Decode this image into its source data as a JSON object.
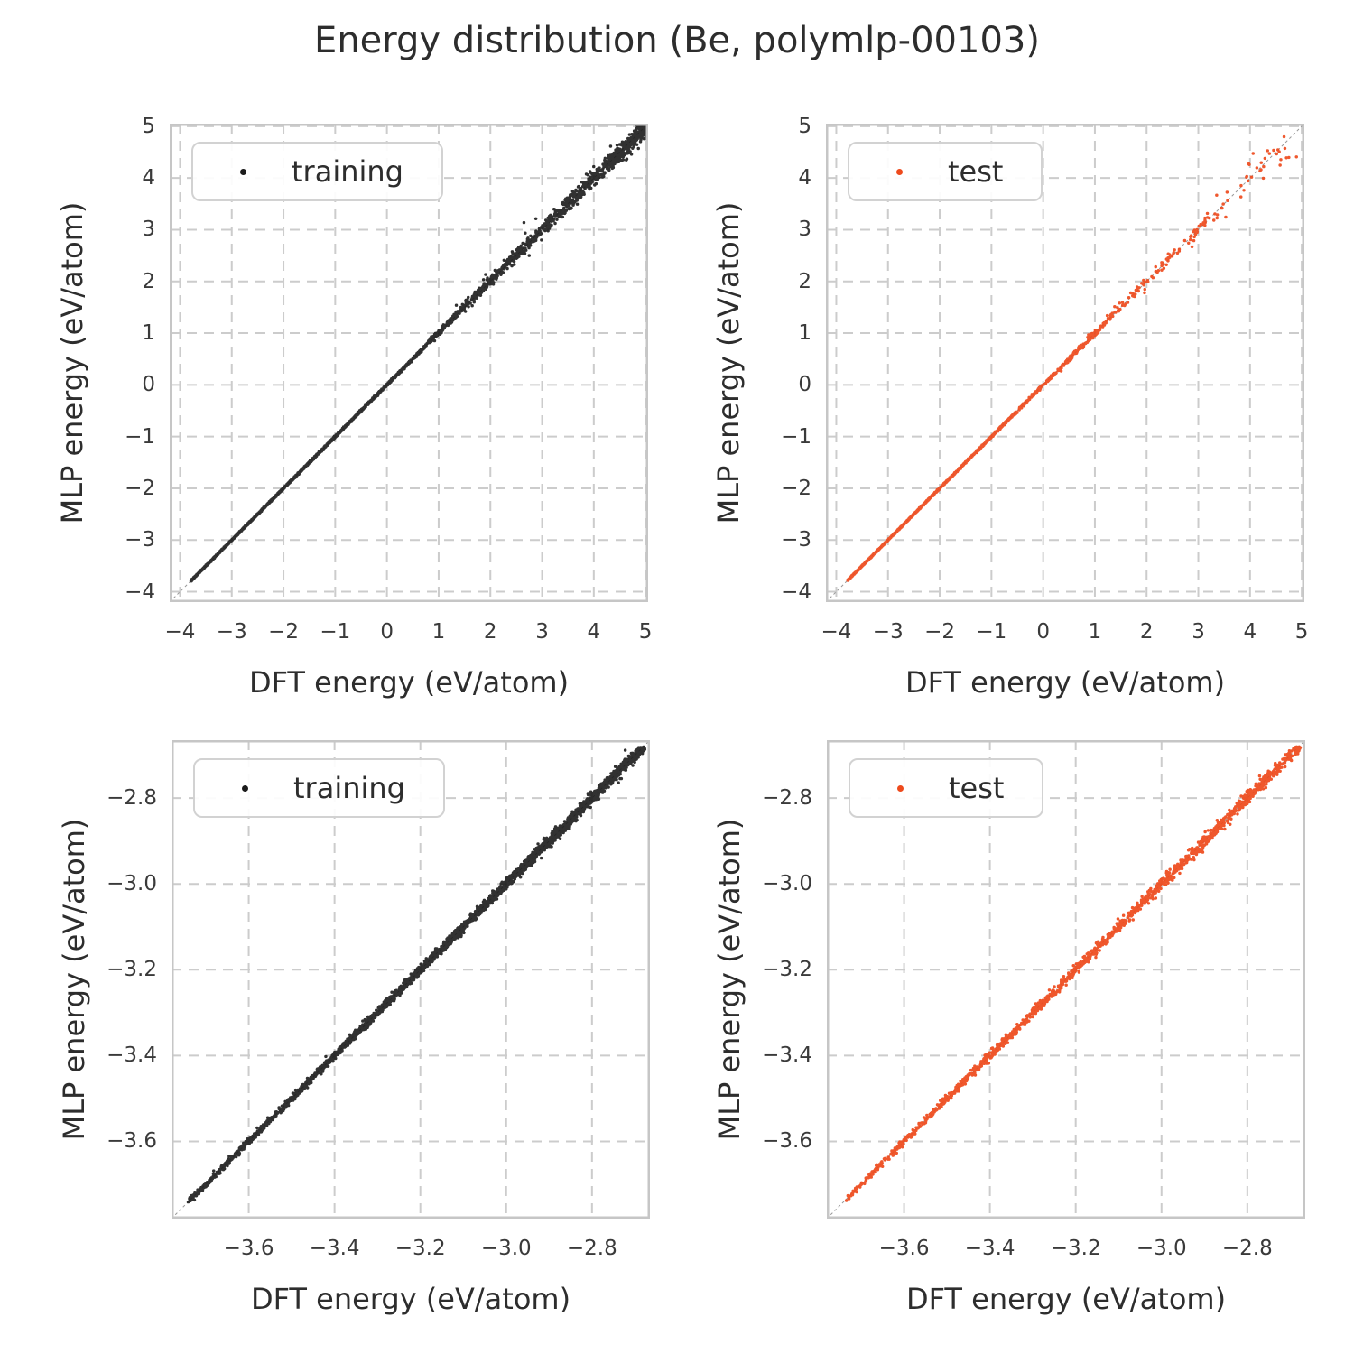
{
  "title": "Energy distribution (Be, polymlp-00103)",
  "colors": {
    "training": "#1b1b1b",
    "test": "#ee4a1c",
    "grid": "#cccccc",
    "frame": "#c6c6c6",
    "refline": "#999999",
    "text": "#2d2d2d",
    "tick_text": "#3a3a3a",
    "background": "#ffffff"
  },
  "chart_data": [
    {
      "type": "scatter",
      "position": "top-left",
      "legend": "training",
      "color_key": "training",
      "xlabel": "DFT energy (eV/atom)",
      "ylabel": "MLP energy (eV/atom)",
      "xlim": [
        -4.2,
        5.05
      ],
      "ylim": [
        -4.2,
        5.05
      ],
      "xticks": [
        -4,
        -3,
        -2,
        -1,
        0,
        1,
        2,
        3,
        4,
        5
      ],
      "yticks": [
        5,
        4,
        3,
        2,
        1,
        0,
        -1,
        -2,
        -3,
        -4
      ],
      "tick_decimals": 0,
      "relation": "parity y = x; dense tight diagonal from (-3.8,-3.8) to ~(0.7,0.7), spread grows above 1 eV, dense noisy cluster near (4.3..5, 4.2..5)",
      "ref_line": true,
      "seed": 7,
      "point_size": 3.4,
      "point_opacity": 0.9,
      "segments": [
        {
          "n": 2000,
          "x0": -3.79,
          "x1": 0.7,
          "skew": 1.15,
          "noise0": 0.0045,
          "noise1": 0.012,
          "bias": 0
        },
        {
          "n": 420,
          "x0": 0.7,
          "x1": 2.6,
          "skew": 1.0,
          "noise0": 0.02,
          "noise1": 0.06,
          "bias": 0.01
        },
        {
          "n": 380,
          "x0": 2.6,
          "x1": 4.35,
          "skew": 1.0,
          "noise0": 0.05,
          "noise1": 0.1,
          "bias": 0
        },
        {
          "n": 330,
          "x0": 4.25,
          "x1": 5.0,
          "skew": 0.7,
          "noise0": 0.09,
          "noise1": 0.1,
          "bias": -0.03
        },
        {
          "n": 10,
          "x0": 1.2,
          "x1": 3.4,
          "skew": 1.0,
          "noise0": 0.3,
          "noise1": 0.3,
          "bias": 0
        }
      ]
    },
    {
      "type": "scatter",
      "position": "top-right",
      "legend": "test",
      "color_key": "test",
      "xlabel": "DFT energy (eV/atom)",
      "ylabel": "MLP energy (eV/atom)",
      "xlim": [
        -4.2,
        5.05
      ],
      "ylim": [
        -4.2,
        5.05
      ],
      "xticks": [
        -4,
        -3,
        -2,
        -1,
        0,
        1,
        2,
        3,
        4,
        5
      ],
      "yticks": [
        5,
        4,
        3,
        2,
        1,
        0,
        -1,
        -2,
        -3,
        -4
      ],
      "tick_decimals": 0,
      "relation": "parity y = x; dense tight diagonal below -0.6 eV, progressively sparser dots up to 5 eV with outliers near (4.3,4.45), (4.4,4.05), (4.6,3.5), (4.9,4.05)",
      "ref_line": true,
      "seed": 13,
      "point_size": 3.4,
      "point_opacity": 0.92,
      "segments": [
        {
          "n": 1250,
          "x0": -3.78,
          "x1": -0.6,
          "skew": 1.2,
          "noise0": 0.004,
          "noise1": 0.009,
          "bias": 0
        },
        {
          "n": 260,
          "x0": -0.6,
          "x1": 1.1,
          "skew": 1.0,
          "noise0": 0.012,
          "noise1": 0.03,
          "bias": 0
        },
        {
          "n": 110,
          "x0": 1.1,
          "x1": 3.2,
          "skew": 1.0,
          "noise0": 0.04,
          "noise1": 0.08,
          "bias": 0
        },
        {
          "n": 42,
          "x0": 3.2,
          "x1": 5.0,
          "skew": 1.0,
          "noise0": 0.1,
          "noise1": 0.22,
          "bias": 0
        }
      ]
    },
    {
      "type": "scatter",
      "position": "bottom-left",
      "legend": "training",
      "color_key": "training",
      "xlabel": "DFT energy (eV/atom)",
      "ylabel": "MLP energy (eV/atom)",
      "xlim": [
        -3.78,
        -2.665
      ],
      "ylim": [
        -3.78,
        -2.665
      ],
      "xticks": [
        -3.6,
        -3.4,
        -3.2,
        -3.0,
        -2.8
      ],
      "yticks": [
        -2.8,
        -3.0,
        -3.2,
        -3.4,
        -3.6
      ],
      "tick_decimals": 1,
      "relation": "zoomed parity y = x; continuous tight diagonal of points from (-3.74,-3.74) to (-2.67,-2.67), slightly denser/fuzzier toward upper right",
      "ref_line": true,
      "seed": 21,
      "point_size": 3.4,
      "point_opacity": 0.9,
      "segments": [
        {
          "n": 2900,
          "x0": -3.742,
          "x1": -2.672,
          "skew": 0.8,
          "noise0": 0.0035,
          "noise1": 0.0065,
          "bias": 0
        },
        {
          "n": 90,
          "x0": -2.95,
          "x1": -2.7,
          "skew": 1.0,
          "noise0": 0.01,
          "noise1": 0.014,
          "bias": 0
        }
      ]
    },
    {
      "type": "scatter",
      "position": "bottom-right",
      "legend": "test",
      "color_key": "test",
      "xlabel": "DFT energy (eV/atom)",
      "ylabel": "MLP energy (eV/atom)",
      "xlim": [
        -3.78,
        -2.665
      ],
      "ylim": [
        -3.78,
        -2.665
      ],
      "xticks": [
        -3.6,
        -3.4,
        -3.2,
        -3.0,
        -2.8
      ],
      "yticks": [
        -2.8,
        -3.0,
        -3.2,
        -3.4,
        -3.6
      ],
      "tick_decimals": 1,
      "relation": "zoomed parity y = x; continuous tight diagonal of points from (-3.74,-3.74) to (-2.67,-2.67)",
      "ref_line": true,
      "seed": 29,
      "point_size": 3.4,
      "point_opacity": 0.93,
      "segments": [
        {
          "n": 1550,
          "x0": -3.737,
          "x1": -2.672,
          "skew": 0.85,
          "noise0": 0.004,
          "noise1": 0.007,
          "bias": 0
        },
        {
          "n": 45,
          "x0": -3.05,
          "x1": -2.72,
          "skew": 1.0,
          "noise0": 0.01,
          "noise1": 0.01,
          "bias": 0
        }
      ]
    }
  ]
}
